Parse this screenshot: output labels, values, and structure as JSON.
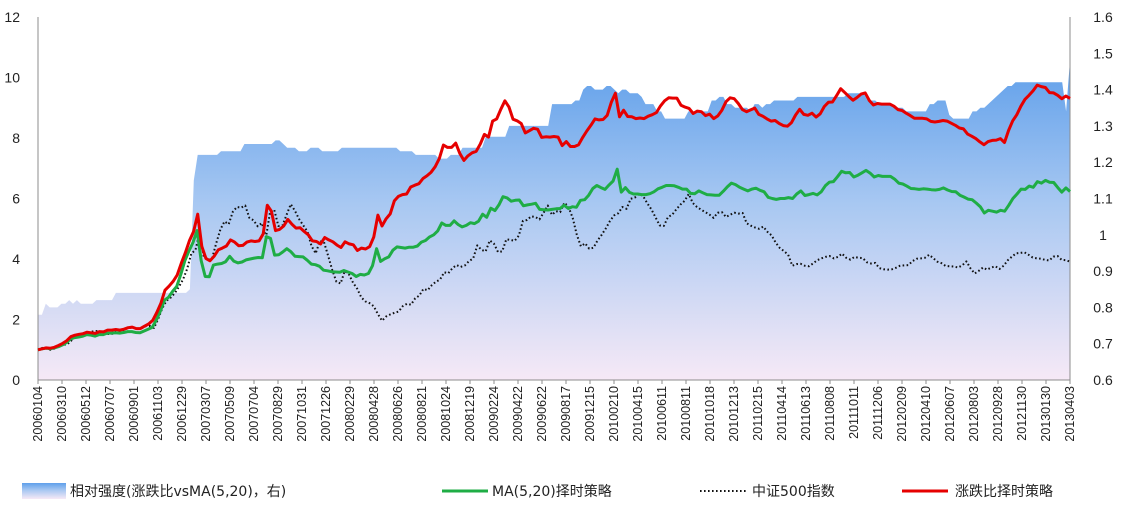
{
  "chart_data": {
    "type": "line",
    "title": "",
    "xlabel": "",
    "ylabel_left": "",
    "ylabel_right": "",
    "left_axis": {
      "ylim": [
        0,
        12
      ],
      "ticks": [
        0,
        2,
        4,
        6,
        8,
        10,
        12
      ]
    },
    "right_axis": {
      "ylim": [
        0.6,
        1.6
      ],
      "ticks": [
        "0.6",
        "0.7",
        "0.8",
        "0.9",
        "1",
        "1.1",
        "1.2",
        "1.3",
        "1.4",
        "1.5",
        "1.6"
      ]
    },
    "grid": false,
    "legend_position": "bottom",
    "x_tick_labels": [
      "20060104",
      "20060310",
      "20060512",
      "20060707",
      "20060901",
      "20061103",
      "20061229",
      "20070307",
      "20070509",
      "20070704",
      "20070829",
      "20071031",
      "20071226",
      "20080229",
      "20080428",
      "20080626",
      "20080821",
      "20081024",
      "20081219",
      "20090224",
      "20090422",
      "20090622",
      "20090817",
      "20091215",
      "20100210",
      "20100415",
      "20100611",
      "20100811",
      "20101018",
      "20101213",
      "20110215",
      "20110414",
      "20110613",
      "20110808",
      "20111011",
      "20111206",
      "20120209",
      "20120410",
      "20120607",
      "20120803",
      "20120928",
      "20121130",
      "20130130",
      "20130403"
    ],
    "series": [
      {
        "name": "相对强度(涨跌比vsMA(5,20)，右)",
        "style": "area",
        "axis": "right",
        "color": "#5f9fea",
        "values": [
          0.78,
          0.78,
          0.81,
          0.8,
          0.8,
          0.8,
          0.81,
          0.81,
          0.82,
          0.81,
          0.82,
          0.81,
          0.81,
          0.81,
          0.81,
          0.82,
          0.82,
          0.82,
          0.82,
          0.82,
          0.84,
          0.84,
          0.84,
          0.84,
          0.84,
          0.84,
          0.84,
          0.84,
          0.84,
          0.84,
          0.84,
          0.84,
          0.84,
          0.84,
          0.84,
          0.84,
          0.84,
          0.84,
          0.84,
          0.85,
          1.15,
          1.22,
          1.22,
          1.22,
          1.22,
          1.22,
          1.22,
          1.23,
          1.23,
          1.23,
          1.23,
          1.23,
          1.23,
          1.25,
          1.25,
          1.25,
          1.25,
          1.25,
          1.25,
          1.25,
          1.25,
          1.26,
          1.26,
          1.25,
          1.24,
          1.24,
          1.24,
          1.23,
          1.23,
          1.23,
          1.24,
          1.24,
          1.24,
          1.23,
          1.23,
          1.23,
          1.23,
          1.23,
          1.24,
          1.24,
          1.24,
          1.24,
          1.24,
          1.24,
          1.24,
          1.24,
          1.24,
          1.24,
          1.24,
          1.24,
          1.24,
          1.24,
          1.24,
          1.23,
          1.23,
          1.23,
          1.23,
          1.22,
          1.22,
          1.22,
          1.22,
          1.22,
          1.22,
          1.21,
          1.21,
          1.21,
          1.22,
          1.22,
          1.22,
          1.24,
          1.24,
          1.24,
          1.24,
          1.24,
          1.24,
          1.27,
          1.27,
          1.27,
          1.27,
          1.27,
          1.27,
          1.3,
          1.3,
          1.3,
          1.3,
          1.3,
          1.3,
          1.3,
          1.3,
          1.3,
          1.3,
          1.3,
          1.36,
          1.36,
          1.36,
          1.36,
          1.36,
          1.36,
          1.37,
          1.37,
          1.4,
          1.41,
          1.41,
          1.4,
          1.4,
          1.4,
          1.41,
          1.41,
          1.4,
          1.39,
          1.4,
          1.4,
          1.39,
          1.39,
          1.39,
          1.38,
          1.36,
          1.36,
          1.36,
          1.34,
          1.34,
          1.32,
          1.32,
          1.32,
          1.32,
          1.32,
          1.32,
          1.34,
          1.34,
          1.34,
          1.34,
          1.34,
          1.34,
          1.37,
          1.37,
          1.38,
          1.38,
          1.36,
          1.36,
          1.35,
          1.35,
          1.35,
          1.35,
          1.34,
          1.36,
          1.36,
          1.35,
          1.36,
          1.36,
          1.37,
          1.37,
          1.37,
          1.37,
          1.37,
          1.37,
          1.38,
          1.38,
          1.38,
          1.38,
          1.38,
          1.38,
          1.38,
          1.38,
          1.38,
          1.38,
          1.38,
          1.38,
          1.38,
          1.39,
          1.39,
          1.39,
          1.39,
          1.39,
          1.37,
          1.37,
          1.37,
          1.36,
          1.36,
          1.36,
          1.36,
          1.35,
          1.35,
          1.35,
          1.34,
          1.34,
          1.34,
          1.34,
          1.34,
          1.34,
          1.36,
          1.36,
          1.37,
          1.37,
          1.37,
          1.33,
          1.32,
          1.32,
          1.32,
          1.32,
          1.32,
          1.34,
          1.34,
          1.35,
          1.35,
          1.36,
          1.37,
          1.38,
          1.39,
          1.4,
          1.41,
          1.41,
          1.42,
          1.42,
          1.42,
          1.42,
          1.42,
          1.42,
          1.42,
          1.42,
          1.42,
          1.42,
          1.42,
          1.42,
          1.42,
          1.34,
          1.48
        ]
      },
      {
        "name": "MA(5,20)择时策略",
        "style": "line",
        "axis": "left",
        "color": "#1fad45",
        "values": [
          1,
          1.03,
          1.05,
          1.03,
          1.06,
          1.1,
          1.16,
          1.24,
          1.36,
          1.4,
          1.42,
          1.45,
          1.5,
          1.48,
          1.45,
          1.5,
          1.5,
          1.55,
          1.55,
          1.56,
          1.55,
          1.57,
          1.6,
          1.6,
          1.57,
          1.56,
          1.62,
          1.68,
          1.74,
          1.98,
          2.28,
          2.64,
          2.73,
          2.93,
          3.09,
          3.49,
          3.94,
          4.26,
          4.55,
          4.94,
          3.94,
          3.42,
          3.41,
          3.8,
          3.83,
          3.85,
          3.91,
          4.09,
          3.93,
          3.87,
          3.9,
          3.97,
          4,
          4.03,
          4.05,
          4.04,
          4.74,
          4.68,
          4.13,
          4.14,
          4.23,
          4.34,
          4.24,
          4.09,
          4.08,
          4.07,
          3.96,
          3.83,
          3.81,
          3.76,
          3.63,
          3.61,
          3.58,
          3.57,
          3.56,
          3.62,
          3.57,
          3.52,
          3.42,
          3.49,
          3.47,
          3.52,
          3.78,
          4.34,
          3.92,
          4.01,
          4.07,
          4.29,
          4.4,
          4.38,
          4.36,
          4.39,
          4.39,
          4.43,
          4.56,
          4.61,
          4.73,
          4.8,
          4.93,
          5.19,
          5.11,
          5.11,
          5.26,
          5.14,
          5.06,
          5.11,
          5.2,
          5.17,
          5.25,
          5.48,
          5.38,
          5.68,
          5.6,
          5.79,
          6.06,
          6.02,
          5.91,
          5.94,
          5.95,
          5.76,
          5.79,
          5.81,
          5.84,
          5.64,
          5.63,
          5.62,
          5.64,
          5.66,
          5.67,
          5.78,
          5.67,
          5.73,
          5.71,
          5.94,
          5.96,
          6.11,
          6.33,
          6.43,
          6.36,
          6.3,
          6.45,
          6.58,
          6.97,
          6.21,
          6.36,
          6.2,
          6.15,
          6.15,
          6.13,
          6.13,
          6.16,
          6.22,
          6.32,
          6.37,
          6.43,
          6.43,
          6.42,
          6.37,
          6.31,
          6.31,
          6.17,
          6.16,
          6.25,
          6.19,
          6.13,
          6.12,
          6.11,
          6.11,
          6.24,
          6.39,
          6.51,
          6.46,
          6.37,
          6.31,
          6.25,
          6.31,
          6.34,
          6.27,
          6.22,
          6.04,
          6,
          5.97,
          6,
          6,
          6.03,
          6,
          6.15,
          6.25,
          6.1,
          6.13,
          6.17,
          6.12,
          6.22,
          6.42,
          6.54,
          6.56,
          6.72,
          6.9,
          6.85,
          6.86,
          6.71,
          6.77,
          6.85,
          6.93,
          6.84,
          6.71,
          6.76,
          6.73,
          6.73,
          6.73,
          6.64,
          6.51,
          6.48,
          6.41,
          6.33,
          6.32,
          6.3,
          6.32,
          6.31,
          6.29,
          6.28,
          6.3,
          6.35,
          6.28,
          6.23,
          6.22,
          6.11,
          6.05,
          5.98,
          5.96,
          5.85,
          5.73,
          5.52,
          5.61,
          5.58,
          5.55,
          5.61,
          5.58,
          5.78,
          6,
          6.15,
          6.31,
          6.3,
          6.41,
          6.37,
          6.56,
          6.51,
          6.6,
          6.54,
          6.53,
          6.36,
          6.21,
          6.35,
          6.23
        ]
      },
      {
        "name": "中证500指数",
        "style": "dotted",
        "axis": "left",
        "color": "#111111",
        "values": [
          1,
          1.06,
          1.04,
          1,
          1.04,
          1.13,
          1.17,
          1.17,
          1.3,
          1.44,
          1.46,
          1.48,
          1.57,
          1.6,
          1.62,
          1.58,
          1.55,
          1.52,
          1.53,
          1.61,
          1.6,
          1.68,
          1.73,
          1.73,
          1.68,
          1.71,
          1.78,
          1.79,
          1.72,
          2.02,
          2.37,
          2.62,
          2.72,
          2.87,
          3.08,
          3.33,
          3.68,
          4.18,
          4.3,
          4.87,
          4.07,
          3.96,
          4.02,
          4.52,
          4.98,
          5.24,
          5.15,
          5.56,
          5.72,
          5.7,
          5.77,
          5.36,
          5.28,
          5.08,
          5.19,
          4.72,
          5.56,
          5.63,
          5.09,
          5.11,
          5.47,
          5.81,
          5.59,
          5.32,
          5.11,
          4.91,
          4.43,
          4.19,
          4.59,
          4.56,
          4.11,
          3.63,
          3.25,
          3.19,
          3.6,
          3.5,
          3.22,
          3.02,
          2.73,
          2.6,
          2.54,
          2.44,
          2.18,
          1.96,
          2.1,
          2.17,
          2.22,
          2.26,
          2.44,
          2.52,
          2.49,
          2.7,
          2.79,
          3.01,
          2.97,
          3.13,
          3.25,
          3.32,
          3.56,
          3.53,
          3.7,
          3.8,
          3.74,
          3.79,
          3.93,
          4.02,
          4.45,
          4.3,
          4.25,
          4.61,
          4.51,
          4.23,
          4.25,
          4.65,
          4.63,
          4.6,
          4.77,
          5.26,
          5.29,
          5.41,
          5.39,
          5.31,
          5.53,
          5.77,
          5.46,
          5.58,
          5.55,
          5.86,
          5.72,
          5.36,
          4.8,
          4.42,
          4.52,
          4.34,
          4.37,
          4.61,
          4.8,
          5.01,
          5.26,
          5.44,
          5.51,
          5.72,
          5.66,
          5.99,
          6.03,
          6.16,
          6.08,
          5.84,
          5.64,
          5.38,
          5.11,
          5.09,
          5.39,
          5.46,
          5.64,
          5.8,
          5.92,
          6.15,
          5.85,
          5.72,
          5.63,
          5.55,
          5.47,
          5.36,
          5.53,
          5.55,
          5.39,
          5.46,
          5.53,
          5.5,
          5.52,
          5.18,
          5.1,
          5.04,
          5,
          5.07,
          4.9,
          4.78,
          4.54,
          4.36,
          4.26,
          4.14,
          3.78,
          3.83,
          3.84,
          3.78,
          3.76,
          3.85,
          3.96,
          4.02,
          4.07,
          4.1,
          4.02,
          4.07,
          4.18,
          4.04,
          3.98,
          4.07,
          4.04,
          4.03,
          3.89,
          3.85,
          3.87,
          3.7,
          3.66,
          3.65,
          3.66,
          3.71,
          3.78,
          3.79,
          3.8,
          3.93,
          4.01,
          4.02,
          4.04,
          4.14,
          4.03,
          3.91,
          3.86,
          3.77,
          3.76,
          3.75,
          3.72,
          3.79,
          3.92,
          3.69,
          3.52,
          3.61,
          3.72,
          3.65,
          3.72,
          3.76,
          3.67,
          3.78,
          3.96,
          4.08,
          4.19,
          4.2,
          4.22,
          4.14,
          4.05,
          4.02,
          4.01,
          3.97,
          3.95,
          4.08,
          4.1,
          3.97,
          3.96,
          3.91
        ]
      },
      {
        "name": "涨跌比择时策略",
        "style": "line",
        "axis": "left",
        "color": "#e60000",
        "values": [
          1,
          1.03,
          1.06,
          1.05,
          1.08,
          1.14,
          1.21,
          1.3,
          1.43,
          1.48,
          1.51,
          1.53,
          1.58,
          1.56,
          1.54,
          1.6,
          1.59,
          1.65,
          1.65,
          1.67,
          1.65,
          1.68,
          1.73,
          1.75,
          1.7,
          1.7,
          1.78,
          1.85,
          1.97,
          2.23,
          2.54,
          2.97,
          3.1,
          3.26,
          3.47,
          3.86,
          4.21,
          4.61,
          4.91,
          5.48,
          4.42,
          4.02,
          3.94,
          4.09,
          4.3,
          4.36,
          4.43,
          4.63,
          4.56,
          4.44,
          4.45,
          4.56,
          4.6,
          4.58,
          4.6,
          4.83,
          5.78,
          5.58,
          4.94,
          4.98,
          5.09,
          5.31,
          5.15,
          5.02,
          5.03,
          4.91,
          4.8,
          4.6,
          4.58,
          4.5,
          4.71,
          4.63,
          4.57,
          4.46,
          4.38,
          4.57,
          4.5,
          4.47,
          4.28,
          4.36,
          4.33,
          4.41,
          4.73,
          5.45,
          5.09,
          5.33,
          5.49,
          5.92,
          6.07,
          6.13,
          6.15,
          6.38,
          6.44,
          6.49,
          6.66,
          6.75,
          6.87,
          7.05,
          7.32,
          7.77,
          7.69,
          7.69,
          7.83,
          7.49,
          7.26,
          7.41,
          7.51,
          7.56,
          7.8,
          8.12,
          8.03,
          8.56,
          8.63,
          8.95,
          9.23,
          9.02,
          8.62,
          8.57,
          8.48,
          8.17,
          8.24,
          8.32,
          8.29,
          8.02,
          8.04,
          8.03,
          8.05,
          8.03,
          7.75,
          7.88,
          7.72,
          7.72,
          7.78,
          8.02,
          8.23,
          8.42,
          8.63,
          8.6,
          8.61,
          8.75,
          9.18,
          9.48,
          8.7,
          8.92,
          8.71,
          8.7,
          8.64,
          8.66,
          8.64,
          8.72,
          8.77,
          8.84,
          9.06,
          9.23,
          9.33,
          9.32,
          9.32,
          9.08,
          9.02,
          8.98,
          8.81,
          8.89,
          8.87,
          8.74,
          8.79,
          8.64,
          8.73,
          8.92,
          9.2,
          9.33,
          9.3,
          9.14,
          8.94,
          8.87,
          8.93,
          8.99,
          8.78,
          8.72,
          8.63,
          8.56,
          8.58,
          8.48,
          8.41,
          8.39,
          8.51,
          8.76,
          8.95,
          8.78,
          8.75,
          8.82,
          8.69,
          8.8,
          9.04,
          9.18,
          9.19,
          9.4,
          9.63,
          9.5,
          9.37,
          9.25,
          9.34,
          9.45,
          9.49,
          9.24,
          9.09,
          9.14,
          9.12,
          9.12,
          9.12,
          9.05,
          8.94,
          8.91,
          8.82,
          8.74,
          8.65,
          8.65,
          8.65,
          8.63,
          8.55,
          8.53,
          8.55,
          8.58,
          8.56,
          8.49,
          8.42,
          8.33,
          8.3,
          8.13,
          8.06,
          7.98,
          7.87,
          7.78,
          7.88,
          7.92,
          7.93,
          7.98,
          7.85,
          8.25,
          8.57,
          8.77,
          9.05,
          9.28,
          9.41,
          9.56,
          9.75,
          9.7,
          9.67,
          9.5,
          9.49,
          9.41,
          9.3,
          9.39,
          9.31
        ]
      }
    ]
  }
}
